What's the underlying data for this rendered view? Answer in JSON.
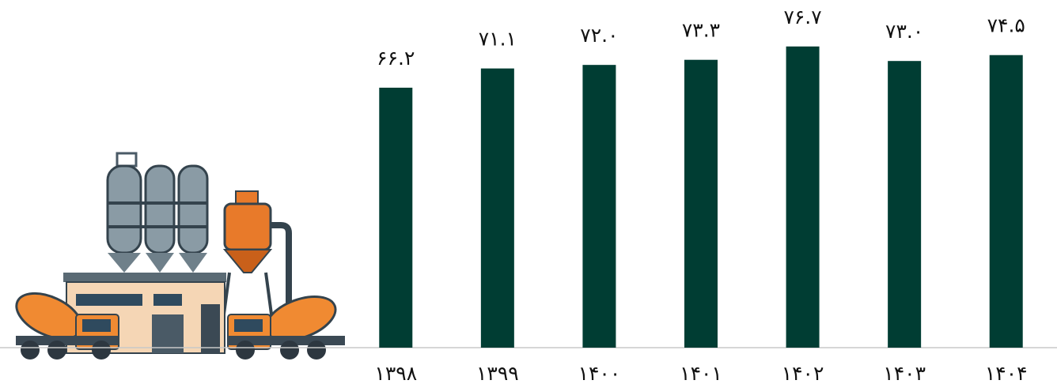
{
  "chart_data": {
    "type": "bar",
    "categories": [
      "۱۳۹۸",
      "۱۳۹۹",
      "۱۴۰۰",
      "۱۴۰۱",
      "۱۴۰۲",
      "۱۴۰۳",
      "۱۴۰۴"
    ],
    "values": [
      66.2,
      71.1,
      72.0,
      73.3,
      76.7,
      73.0,
      74.5
    ],
    "value_labels": [
      "۶۶.۲",
      "۷۱.۱",
      "۷۲.۰",
      "۷۳.۳",
      "۷۶.۷",
      "۷۳.۰",
      "۷۴.۵"
    ],
    "color": "#003d33"
  }
}
